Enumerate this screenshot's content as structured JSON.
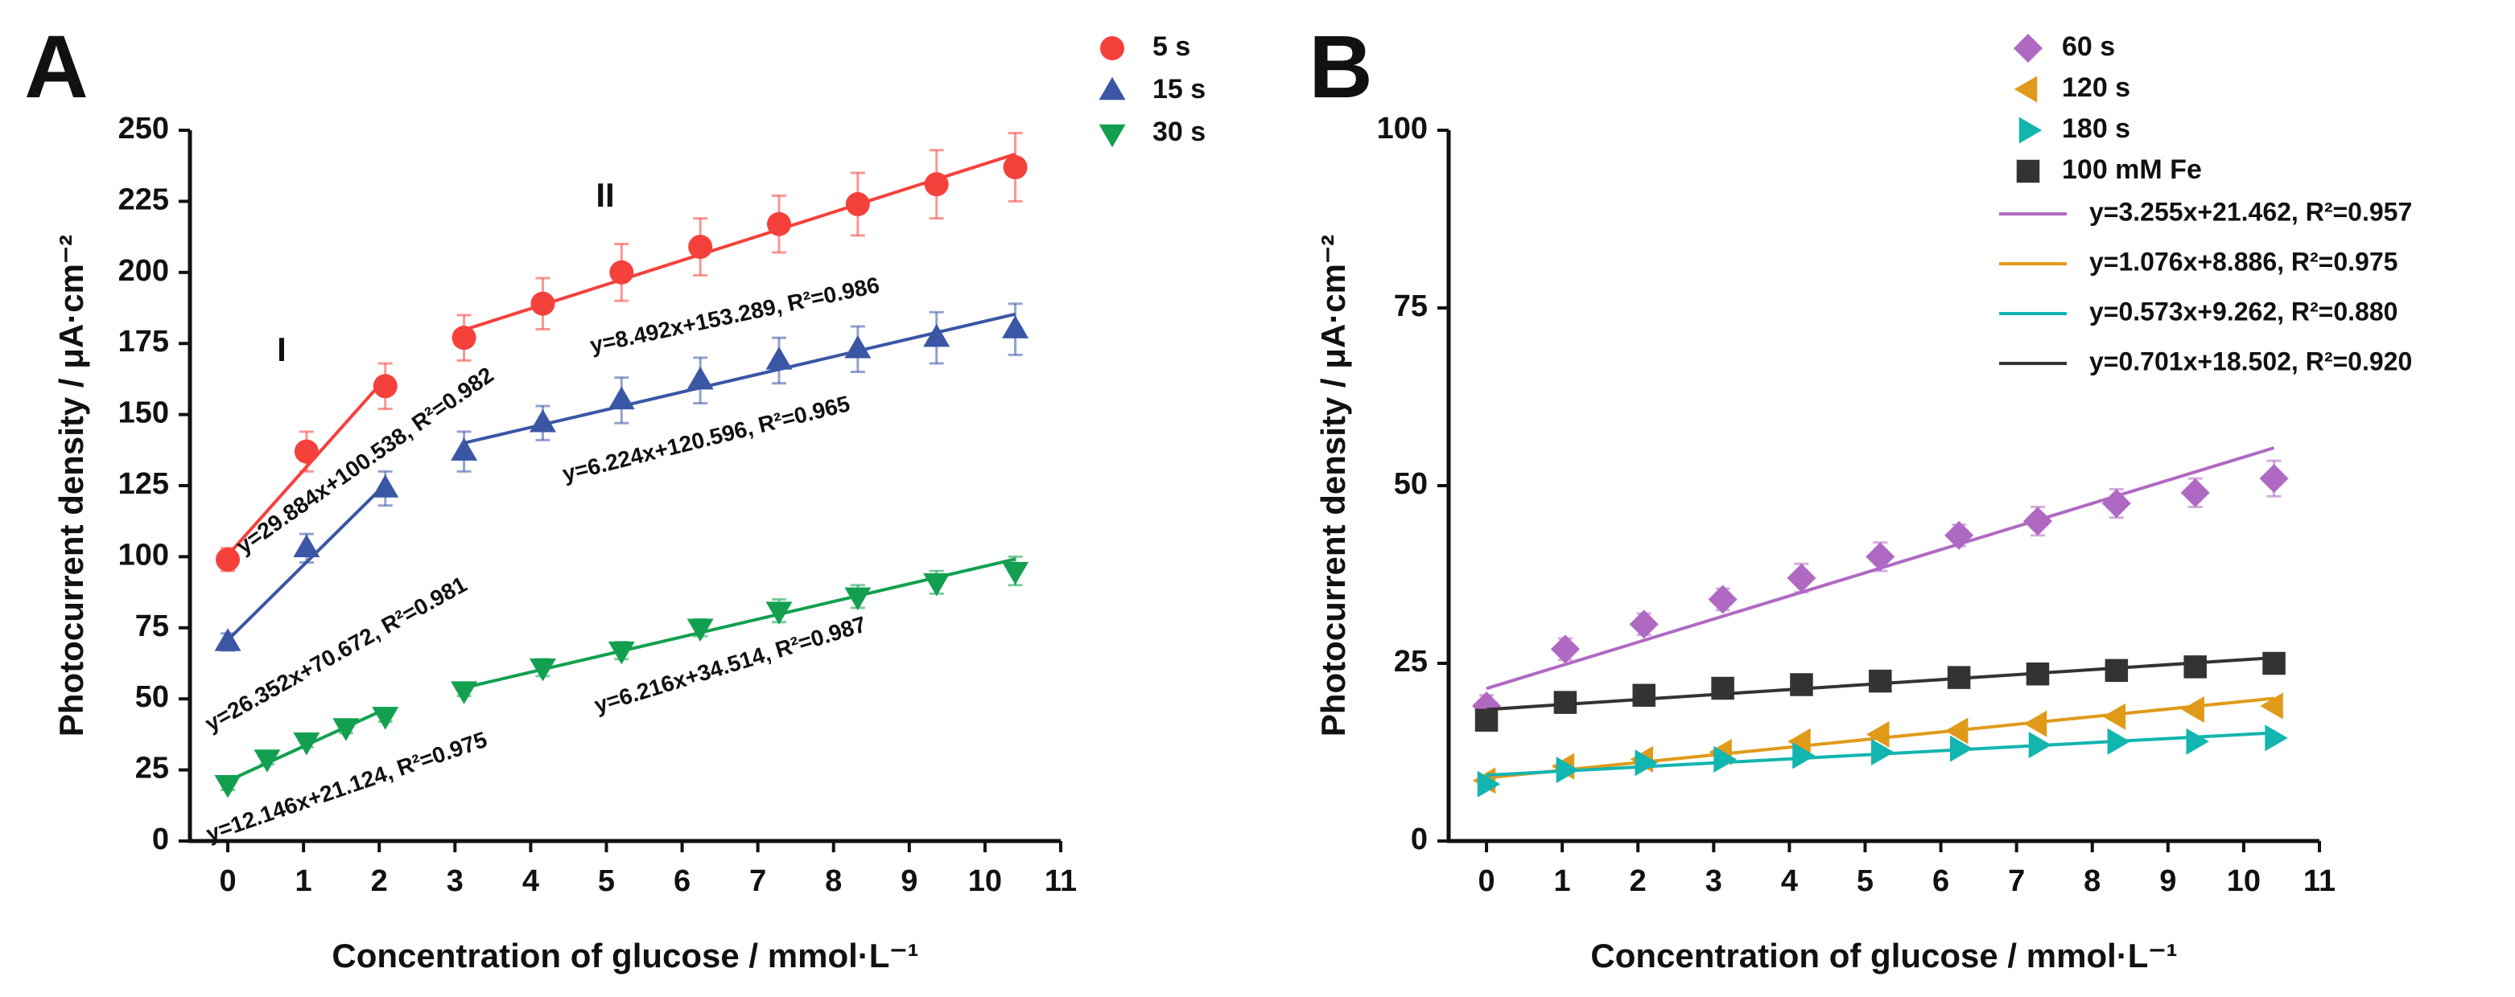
{
  "chart_data": [
    {
      "type": "scatter",
      "panel_label": "A",
      "x_label": "Concentration of glucose / mmol·L⁻¹",
      "y_label": "Photocurrent density / μA·cm⁻²",
      "xlim": [
        -0.5,
        11
      ],
      "xticks": [
        0,
        1,
        2,
        3,
        4,
        5,
        6,
        7,
        8,
        9,
        10,
        11
      ],
      "ylim": [
        0,
        250
      ],
      "yticks": [
        0,
        25,
        50,
        75,
        100,
        125,
        150,
        175,
        200,
        225,
        250
      ],
      "annotations": [
        "I",
        "II"
      ],
      "series": [
        {
          "name": "5 s",
          "color": "#f5413c",
          "marker": "circle",
          "x": [
            0,
            1.04,
            2.08,
            3.12,
            4.16,
            5.2,
            6.24,
            7.28,
            8.32,
            9.36,
            10.4
          ],
          "values": [
            99,
            137,
            160,
            177,
            189,
            200,
            209,
            217,
            224,
            231,
            237
          ],
          "errors": [
            4,
            7,
            8,
            8,
            9,
            10,
            10,
            10,
            11,
            12,
            12
          ],
          "fits": [
            {
              "label": "y=29.884x+100.538, R²=0.982",
              "slope": 29.884,
              "intercept": 100.538,
              "x_range": [
                0,
                2.08
              ]
            },
            {
              "label": "y=8.492x+153.289, R²=0.986",
              "slope": 8.492,
              "intercept": 153.289,
              "x_range": [
                3.12,
                10.4
              ]
            }
          ]
        },
        {
          "name": "15 s",
          "color": "#3a56a5",
          "marker": "triangle-up",
          "x": [
            0,
            1.04,
            2.08,
            3.12,
            4.16,
            5.2,
            6.24,
            7.28,
            8.32,
            9.36,
            10.4
          ],
          "values": [
            70,
            103,
            124,
            137,
            147,
            155,
            162,
            169,
            173,
            177,
            180
          ],
          "errors": [
            3,
            5,
            6,
            7,
            6,
            8,
            8,
            8,
            8,
            9,
            9
          ],
          "fits": [
            {
              "label": "y=26.352x+70.672, R²=0.981",
              "slope": 26.352,
              "intercept": 70.672,
              "x_range": [
                0,
                2.08
              ]
            },
            {
              "label": "y=6.224x+120.596, R²=0.965",
              "slope": 6.224,
              "intercept": 120.596,
              "x_range": [
                3.12,
                10.4
              ]
            }
          ]
        },
        {
          "name": "30 s",
          "color": "#12a050",
          "marker": "triangle-down",
          "x": [
            0,
            0.52,
            1.04,
            1.56,
            2.08,
            3.12,
            4.16,
            5.2,
            6.24,
            7.28,
            8.32,
            9.36,
            10.4
          ],
          "values": [
            20,
            29,
            35,
            40,
            44,
            53,
            61,
            67,
            75,
            81,
            86,
            91,
            95
          ],
          "errors": [
            2,
            2,
            2,
            2,
            2,
            2,
            3,
            3,
            3,
            4,
            4,
            4,
            5
          ],
          "fits": [
            {
              "label": "y=12.146x+21.124, R²=0.975",
              "slope": 12.146,
              "intercept": 21.124,
              "x_range": [
                0,
                2.08
              ]
            },
            {
              "label": "y=6.216x+34.514, R²=0.987",
              "slope": 6.216,
              "intercept": 34.514,
              "x_range": [
                3.12,
                10.4
              ]
            }
          ]
        }
      ]
    },
    {
      "type": "scatter",
      "panel_label": "B",
      "x_label": "Concentration of glucose / mmol·L⁻¹",
      "y_label": "Photocurrent density / μA·cm⁻²",
      "xlim": [
        -0.5,
        11
      ],
      "xticks": [
        0,
        1,
        2,
        3,
        4,
        5,
        6,
        7,
        8,
        9,
        10,
        11
      ],
      "ylim": [
        0,
        100
      ],
      "yticks": [
        0,
        25,
        50,
        75,
        100
      ],
      "series": [
        {
          "name": "60 s",
          "color": "#b069c2",
          "marker": "diamond",
          "x": [
            0,
            1.04,
            2.08,
            3.12,
            4.16,
            5.2,
            6.24,
            7.28,
            8.32,
            9.36,
            10.4
          ],
          "values": [
            19,
            27,
            30.5,
            34,
            37,
            40,
            43,
            45,
            47.5,
            49,
            51
          ],
          "errors": [
            1.5,
            1.5,
            1.5,
            1.5,
            2,
            2,
            1.5,
            2,
            2,
            2,
            2.5
          ],
          "fits": [
            {
              "label": "y=3.255x+21.462, R²=0.957",
              "slope": 3.255,
              "intercept": 21.462,
              "x_range": [
                0,
                10.4
              ]
            }
          ]
        },
        {
          "name": "120 s",
          "color": "#e09a1a",
          "marker": "triangle-left",
          "x": [
            0,
            1.04,
            2.08,
            3.12,
            4.16,
            5.2,
            6.24,
            7.28,
            8.32,
            9.36,
            10.4
          ],
          "values": [
            8.5,
            10.5,
            11.5,
            12.5,
            14,
            15,
            15.5,
            16.5,
            17.5,
            18.5,
            19
          ],
          "fits": [
            {
              "label": "y=1.076x+8.886, R²=0.975",
              "slope": 1.076,
              "intercept": 8.886,
              "x_range": [
                0,
                10.4
              ]
            }
          ]
        },
        {
          "name": "180 s",
          "color": "#13b5b0",
          "marker": "triangle-right",
          "x": [
            0,
            1.04,
            2.08,
            3.12,
            4.16,
            5.2,
            6.24,
            7.28,
            8.32,
            9.36,
            10.4
          ],
          "values": [
            8,
            10,
            11,
            11.5,
            12,
            12.5,
            13,
            13.5,
            14,
            14,
            14.5
          ],
          "fits": [
            {
              "label": "y=0.573x+9.262, R²=0.880",
              "slope": 0.573,
              "intercept": 9.262,
              "x_range": [
                0,
                10.4
              ]
            }
          ]
        },
        {
          "name": "100 mM Fe",
          "color": "#333333",
          "marker": "square",
          "x": [
            0,
            1.04,
            2.08,
            3.12,
            4.16,
            5.2,
            6.24,
            7.28,
            8.32,
            9.36,
            10.4
          ],
          "values": [
            17,
            19.5,
            20.5,
            21.5,
            22,
            22.5,
            23,
            23.5,
            24,
            24.5,
            25
          ],
          "fits": [
            {
              "label": "y=0.701x+18.502, R²=0.920",
              "slope": 0.701,
              "intercept": 18.502,
              "x_range": [
                0,
                10.4
              ]
            }
          ]
        }
      ]
    }
  ]
}
